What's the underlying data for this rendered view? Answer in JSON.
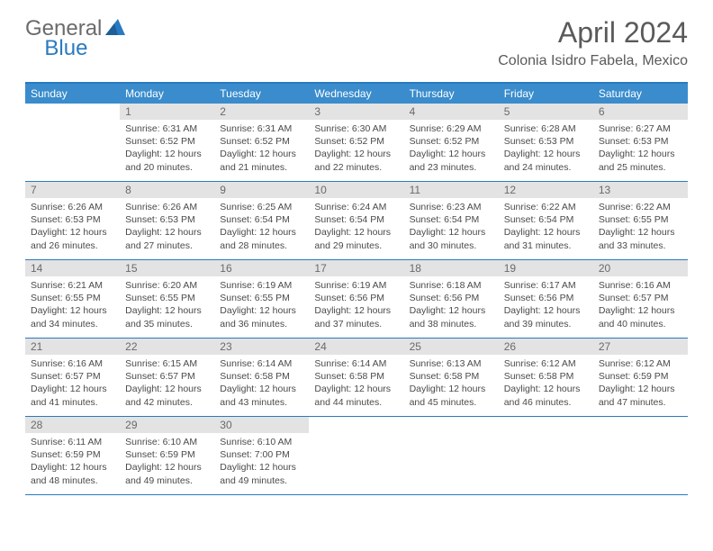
{
  "logo": {
    "general": "General",
    "blue": "Blue"
  },
  "title": "April 2024",
  "location": "Colonia Isidro Fabela, Mexico",
  "colors": {
    "header_bar": "#3a8ccc",
    "accent": "#2a7ac0",
    "daynum_bg": "#e3e3e3",
    "text": "#4a4a4a",
    "logo_gray": "#6b6b6b"
  },
  "weekdays": [
    "Sunday",
    "Monday",
    "Tuesday",
    "Wednesday",
    "Thursday",
    "Friday",
    "Saturday"
  ],
  "weeks": [
    [
      null,
      {
        "n": "1",
        "sr": "6:31 AM",
        "ss": "6:52 PM",
        "dl": "12 hours and 20 minutes."
      },
      {
        "n": "2",
        "sr": "6:31 AM",
        "ss": "6:52 PM",
        "dl": "12 hours and 21 minutes."
      },
      {
        "n": "3",
        "sr": "6:30 AM",
        "ss": "6:52 PM",
        "dl": "12 hours and 22 minutes."
      },
      {
        "n": "4",
        "sr": "6:29 AM",
        "ss": "6:52 PM",
        "dl": "12 hours and 23 minutes."
      },
      {
        "n": "5",
        "sr": "6:28 AM",
        "ss": "6:53 PM",
        "dl": "12 hours and 24 minutes."
      },
      {
        "n": "6",
        "sr": "6:27 AM",
        "ss": "6:53 PM",
        "dl": "12 hours and 25 minutes."
      }
    ],
    [
      {
        "n": "7",
        "sr": "6:26 AM",
        "ss": "6:53 PM",
        "dl": "12 hours and 26 minutes."
      },
      {
        "n": "8",
        "sr": "6:26 AM",
        "ss": "6:53 PM",
        "dl": "12 hours and 27 minutes."
      },
      {
        "n": "9",
        "sr": "6:25 AM",
        "ss": "6:54 PM",
        "dl": "12 hours and 28 minutes."
      },
      {
        "n": "10",
        "sr": "6:24 AM",
        "ss": "6:54 PM",
        "dl": "12 hours and 29 minutes."
      },
      {
        "n": "11",
        "sr": "6:23 AM",
        "ss": "6:54 PM",
        "dl": "12 hours and 30 minutes."
      },
      {
        "n": "12",
        "sr": "6:22 AM",
        "ss": "6:54 PM",
        "dl": "12 hours and 31 minutes."
      },
      {
        "n": "13",
        "sr": "6:22 AM",
        "ss": "6:55 PM",
        "dl": "12 hours and 33 minutes."
      }
    ],
    [
      {
        "n": "14",
        "sr": "6:21 AM",
        "ss": "6:55 PM",
        "dl": "12 hours and 34 minutes."
      },
      {
        "n": "15",
        "sr": "6:20 AM",
        "ss": "6:55 PM",
        "dl": "12 hours and 35 minutes."
      },
      {
        "n": "16",
        "sr": "6:19 AM",
        "ss": "6:55 PM",
        "dl": "12 hours and 36 minutes."
      },
      {
        "n": "17",
        "sr": "6:19 AM",
        "ss": "6:56 PM",
        "dl": "12 hours and 37 minutes."
      },
      {
        "n": "18",
        "sr": "6:18 AM",
        "ss": "6:56 PM",
        "dl": "12 hours and 38 minutes."
      },
      {
        "n": "19",
        "sr": "6:17 AM",
        "ss": "6:56 PM",
        "dl": "12 hours and 39 minutes."
      },
      {
        "n": "20",
        "sr": "6:16 AM",
        "ss": "6:57 PM",
        "dl": "12 hours and 40 minutes."
      }
    ],
    [
      {
        "n": "21",
        "sr": "6:16 AM",
        "ss": "6:57 PM",
        "dl": "12 hours and 41 minutes."
      },
      {
        "n": "22",
        "sr": "6:15 AM",
        "ss": "6:57 PM",
        "dl": "12 hours and 42 minutes."
      },
      {
        "n": "23",
        "sr": "6:14 AM",
        "ss": "6:58 PM",
        "dl": "12 hours and 43 minutes."
      },
      {
        "n": "24",
        "sr": "6:14 AM",
        "ss": "6:58 PM",
        "dl": "12 hours and 44 minutes."
      },
      {
        "n": "25",
        "sr": "6:13 AM",
        "ss": "6:58 PM",
        "dl": "12 hours and 45 minutes."
      },
      {
        "n": "26",
        "sr": "6:12 AM",
        "ss": "6:58 PM",
        "dl": "12 hours and 46 minutes."
      },
      {
        "n": "27",
        "sr": "6:12 AM",
        "ss": "6:59 PM",
        "dl": "12 hours and 47 minutes."
      }
    ],
    [
      {
        "n": "28",
        "sr": "6:11 AM",
        "ss": "6:59 PM",
        "dl": "12 hours and 48 minutes."
      },
      {
        "n": "29",
        "sr": "6:10 AM",
        "ss": "6:59 PM",
        "dl": "12 hours and 49 minutes."
      },
      {
        "n": "30",
        "sr": "6:10 AM",
        "ss": "7:00 PM",
        "dl": "12 hours and 49 minutes."
      },
      null,
      null,
      null,
      null
    ]
  ],
  "labels": {
    "sunrise": "Sunrise:",
    "sunset": "Sunset:",
    "daylight": "Daylight:"
  }
}
